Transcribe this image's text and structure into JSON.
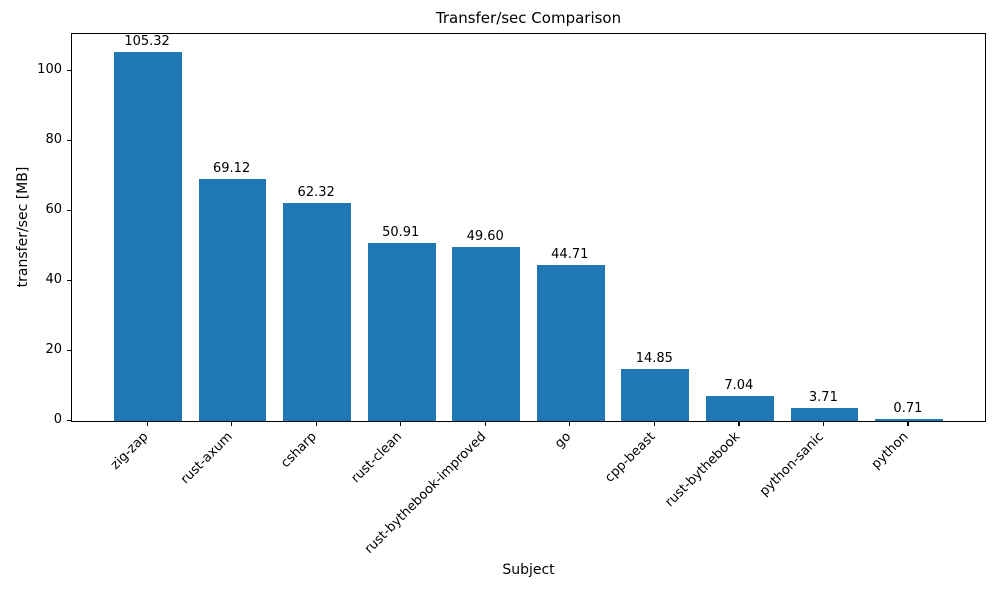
{
  "chart_data": {
    "type": "bar",
    "title": "Transfer/sec Comparison",
    "xlabel": "Subject",
    "ylabel": "transfer/sec [MB]",
    "categories": [
      "zig-zap",
      "rust-axum",
      "csharp",
      "rust-clean",
      "rust-bythebook-improved",
      "go",
      "cpp-beast",
      "rust-bythebook",
      "python-sanic",
      "python"
    ],
    "values": [
      105.32,
      69.12,
      62.32,
      50.91,
      49.6,
      44.71,
      14.85,
      7.04,
      3.71,
      0.71
    ],
    "bar_labels": [
      "105.32",
      "69.12",
      "62.32",
      "50.91",
      "49.60",
      "44.71",
      "14.85",
      "7.04",
      "3.71",
      "0.71"
    ],
    "ylim": [
      0,
      110.59
    ],
    "yticks": [
      0,
      20,
      40,
      60,
      80,
      100
    ],
    "bar_color": "#1f77b4",
    "spine_color": "#000000",
    "xtick_rotation": 45,
    "grid": false,
    "legend": null
  }
}
